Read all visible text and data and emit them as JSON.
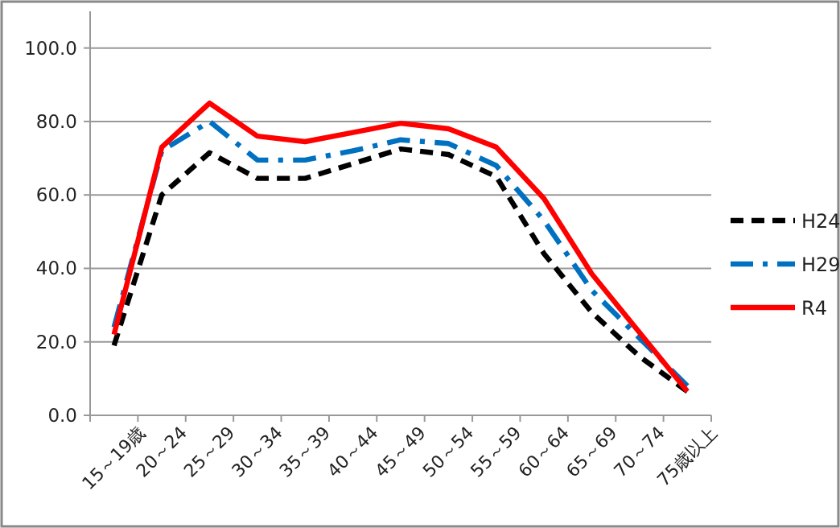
{
  "chart_data": {
    "type": "line",
    "categories": [
      "15～19歳",
      "20～24",
      "25～29",
      "30～34",
      "35～39",
      "40～44",
      "45～49",
      "50～54",
      "55～59",
      "60～64",
      "65～69",
      "70～74",
      "75歳以上"
    ],
    "series": [
      {
        "name": "H24",
        "color": "#000000",
        "line_style": "dashed",
        "values": [
          19,
          60,
          71.5,
          64.5,
          64.5,
          68.5,
          72.5,
          71,
          65,
          44,
          28,
          16,
          6.5
        ]
      },
      {
        "name": "H29",
        "color": "#0070c0",
        "line_style": "dashdot",
        "values": [
          24,
          72,
          80,
          69.5,
          69.5,
          72,
          75,
          74,
          68,
          53,
          34,
          21,
          8
        ]
      },
      {
        "name": "R4",
        "color": "#ff0000",
        "line_style": "solid",
        "values": [
          22,
          73,
          85,
          76,
          74.5,
          77,
          79.5,
          78,
          73,
          59,
          38.5,
          22.5,
          6.5
        ]
      }
    ],
    "ylim": [
      0,
      110
    ],
    "yticks": [
      {
        "value": 0,
        "label": "0.0"
      },
      {
        "value": 20,
        "label": "20.0"
      },
      {
        "value": 40,
        "label": "40.0"
      },
      {
        "value": 60,
        "label": "60.0"
      },
      {
        "value": 80,
        "label": "80.0"
      },
      {
        "value": 100,
        "label": "100.0"
      }
    ],
    "grid": "y",
    "legend": "right"
  }
}
